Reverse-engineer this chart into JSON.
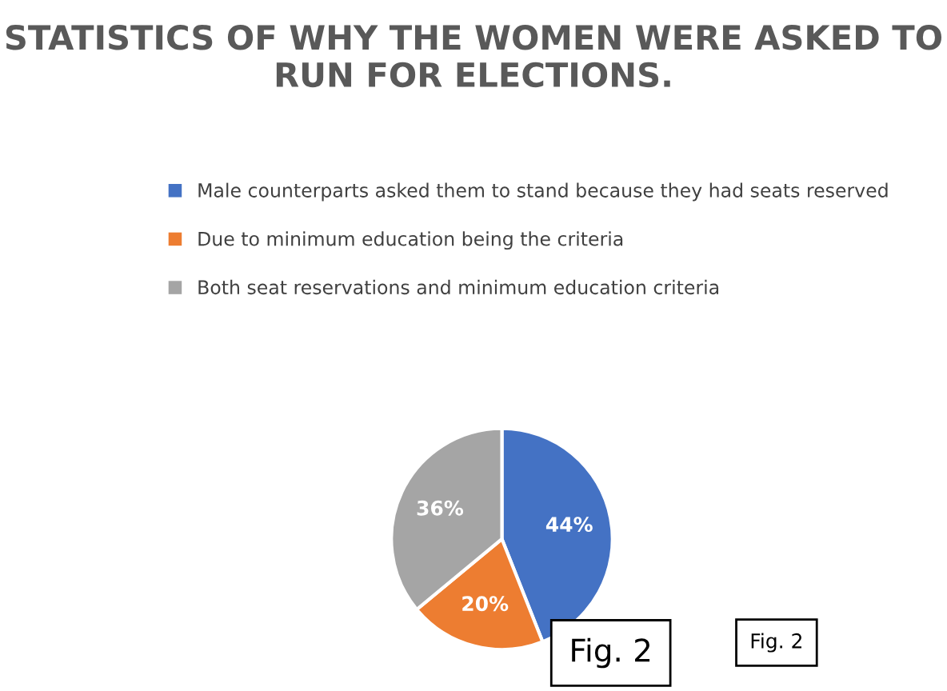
{
  "chart_data": {
    "type": "pie",
    "title": "STATISTICS OF WHY THE WOMEN WERE ASKED TO RUN FOR ELECTIONS.",
    "categories": [
      "Male counterparts asked them to stand because they had seats reserved",
      "Due to minimum education being the criteria",
      "Both seat reservations and minimum education criteria"
    ],
    "values": [
      44,
      20,
      36
    ],
    "colors": [
      "#4472c4",
      "#ed7d31",
      "#a5a5a5"
    ],
    "value_labels": [
      "44%",
      "20%",
      "36%"
    ],
    "legend": "top",
    "annotations": [
      "Fig. 2",
      "Fig. 2"
    ]
  }
}
